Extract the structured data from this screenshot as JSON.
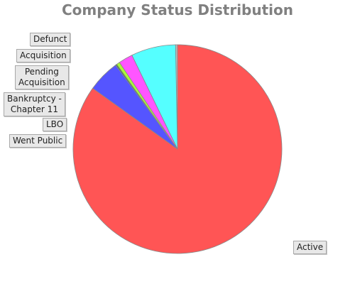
{
  "chart_data": {
    "type": "pie",
    "title": "Company Status Distribution",
    "start_angle_deg": 90,
    "direction": "counterclockwise",
    "slices": [
      {
        "label": "Defunct",
        "value": 0.3,
        "color": "#bbbbbb"
      },
      {
        "label": "Acquisition",
        "value": 6.9,
        "color": "#55ffff"
      },
      {
        "label": "Pending\nAcquisition",
        "value": 2.2,
        "color": "#ff55ff"
      },
      {
        "label": "Bankruptcy -\nChapter 11",
        "value": 0.5,
        "color": "#aaff33"
      },
      {
        "label": "LBO",
        "value": 0.2,
        "color": "#448844"
      },
      {
        "label": "Went Public",
        "value": 5.0,
        "color": "#5555ff"
      },
      {
        "label": "Active",
        "value": 84.9,
        "color": "#ff5555"
      }
    ]
  }
}
